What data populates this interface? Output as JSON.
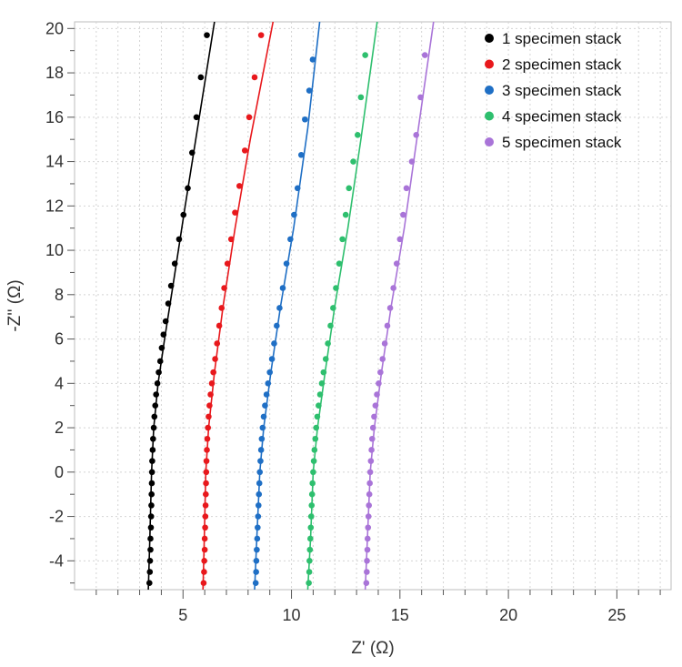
{
  "chart_data": {
    "type": "scatter",
    "title": "",
    "xlabel": "Z' (Ω)",
    "ylabel": "-Z'' (Ω)",
    "xlim": [
      0,
      27.5
    ],
    "ylim": [
      -5.3,
      20.3
    ],
    "x_ticks": [
      5,
      10,
      15,
      20,
      25
    ],
    "y_ticks": [
      -4,
      -2,
      0,
      2,
      4,
      6,
      8,
      10,
      12,
      14,
      16,
      18,
      20
    ],
    "grid": true,
    "legend_position": "top-right",
    "series": [
      {
        "name": "1 specimen stack",
        "color": "#000000",
        "points": [
          [
            3.45,
            -5.0
          ],
          [
            3.47,
            -4.5
          ],
          [
            3.48,
            -4.0
          ],
          [
            3.5,
            -3.5
          ],
          [
            3.5,
            -3.0
          ],
          [
            3.52,
            -2.5
          ],
          [
            3.53,
            -2.0
          ],
          [
            3.54,
            -1.5
          ],
          [
            3.55,
            -1.0
          ],
          [
            3.56,
            -0.5
          ],
          [
            3.57,
            0.0
          ],
          [
            3.58,
            0.5
          ],
          [
            3.6,
            1.0
          ],
          [
            3.62,
            1.5
          ],
          [
            3.65,
            2.0
          ],
          [
            3.68,
            2.5
          ],
          [
            3.72,
            3.0
          ],
          [
            3.76,
            3.5
          ],
          [
            3.82,
            4.0
          ],
          [
            3.88,
            4.5
          ],
          [
            3.95,
            5.0
          ],
          [
            4.02,
            5.6
          ],
          [
            4.1,
            6.2
          ],
          [
            4.2,
            6.8
          ],
          [
            4.32,
            7.6
          ],
          [
            4.45,
            8.4
          ],
          [
            4.62,
            9.4
          ],
          [
            4.82,
            10.5
          ],
          [
            5.02,
            11.6
          ],
          [
            5.22,
            12.8
          ],
          [
            5.42,
            14.4
          ],
          [
            5.62,
            16.0
          ],
          [
            5.82,
            17.8
          ],
          [
            6.1,
            19.7
          ]
        ],
        "fit": [
          [
            3.4,
            -5.3
          ],
          [
            3.47,
            -3.0
          ],
          [
            3.55,
            0.0
          ],
          [
            3.65,
            2.0
          ],
          [
            3.85,
            4.0
          ],
          [
            4.15,
            6.0
          ],
          [
            4.55,
            8.5
          ],
          [
            5.1,
            12.0
          ],
          [
            5.75,
            16.0
          ],
          [
            6.45,
            20.3
          ]
        ]
      },
      {
        "name": "2 specimen stack",
        "color": "#e8181c",
        "points": [
          [
            5.95,
            -5.0
          ],
          [
            5.97,
            -4.5
          ],
          [
            5.98,
            -4.0
          ],
          [
            6.0,
            -3.5
          ],
          [
            6.0,
            -3.0
          ],
          [
            6.02,
            -2.5
          ],
          [
            6.03,
            -2.0
          ],
          [
            6.04,
            -1.5
          ],
          [
            6.05,
            -1.0
          ],
          [
            6.06,
            -0.5
          ],
          [
            6.07,
            0.0
          ],
          [
            6.08,
            0.5
          ],
          [
            6.1,
            1.0
          ],
          [
            6.12,
            1.5
          ],
          [
            6.15,
            2.0
          ],
          [
            6.18,
            2.5
          ],
          [
            6.22,
            3.0
          ],
          [
            6.27,
            3.5
          ],
          [
            6.33,
            4.0
          ],
          [
            6.4,
            4.5
          ],
          [
            6.48,
            5.1
          ],
          [
            6.57,
            5.8
          ],
          [
            6.67,
            6.6
          ],
          [
            6.78,
            7.4
          ],
          [
            6.9,
            8.3
          ],
          [
            7.05,
            9.4
          ],
          [
            7.22,
            10.5
          ],
          [
            7.4,
            11.7
          ],
          [
            7.6,
            12.9
          ],
          [
            7.85,
            14.5
          ],
          [
            8.05,
            16.0
          ],
          [
            8.3,
            17.8
          ],
          [
            8.6,
            19.7
          ]
        ],
        "fit": [
          [
            5.92,
            -5.3
          ],
          [
            5.98,
            -3.0
          ],
          [
            6.05,
            0.0
          ],
          [
            6.18,
            2.0
          ],
          [
            6.45,
            4.5
          ],
          [
            6.85,
            7.5
          ],
          [
            7.4,
            11.0
          ],
          [
            8.1,
            15.0
          ],
          [
            9.15,
            20.3
          ]
        ]
      },
      {
        "name": "3 specimen stack",
        "color": "#1f6fc5",
        "points": [
          [
            8.35,
            -5.0
          ],
          [
            8.37,
            -4.5
          ],
          [
            8.38,
            -4.0
          ],
          [
            8.4,
            -3.5
          ],
          [
            8.42,
            -3.0
          ],
          [
            8.44,
            -2.5
          ],
          [
            8.46,
            -2.0
          ],
          [
            8.48,
            -1.5
          ],
          [
            8.5,
            -1.0
          ],
          [
            8.52,
            -0.5
          ],
          [
            8.54,
            0.0
          ],
          [
            8.57,
            0.5
          ],
          [
            8.6,
            1.0
          ],
          [
            8.63,
            1.5
          ],
          [
            8.67,
            2.0
          ],
          [
            8.72,
            2.5
          ],
          [
            8.78,
            3.0
          ],
          [
            8.85,
            3.5
          ],
          [
            8.92,
            4.0
          ],
          [
            9.0,
            4.5
          ],
          [
            9.1,
            5.1
          ],
          [
            9.2,
            5.8
          ],
          [
            9.32,
            6.6
          ],
          [
            9.45,
            7.4
          ],
          [
            9.6,
            8.3
          ],
          [
            9.77,
            9.4
          ],
          [
            9.95,
            10.5
          ],
          [
            10.12,
            11.6
          ],
          [
            10.28,
            12.8
          ],
          [
            10.45,
            14.3
          ],
          [
            10.62,
            15.9
          ],
          [
            10.82,
            17.2
          ],
          [
            10.98,
            18.6
          ]
        ],
        "fit": [
          [
            8.3,
            -5.3
          ],
          [
            8.4,
            -3.0
          ],
          [
            8.54,
            0.0
          ],
          [
            8.72,
            2.0
          ],
          [
            9.05,
            4.5
          ],
          [
            9.5,
            7.5
          ],
          [
            10.1,
            11.0
          ],
          [
            10.75,
            15.5
          ],
          [
            11.3,
            20.3
          ]
        ]
      },
      {
        "name": "4 specimen stack",
        "color": "#2ebf6e",
        "points": [
          [
            10.8,
            -5.0
          ],
          [
            10.82,
            -4.5
          ],
          [
            10.83,
            -4.0
          ],
          [
            10.85,
            -3.5
          ],
          [
            10.87,
            -3.0
          ],
          [
            10.89,
            -2.5
          ],
          [
            10.91,
            -2.0
          ],
          [
            10.93,
            -1.5
          ],
          [
            10.95,
            -1.0
          ],
          [
            10.97,
            -0.5
          ],
          [
            11.0,
            0.0
          ],
          [
            11.03,
            0.5
          ],
          [
            11.06,
            1.0
          ],
          [
            11.1,
            1.5
          ],
          [
            11.14,
            2.0
          ],
          [
            11.19,
            2.5
          ],
          [
            11.25,
            3.0
          ],
          [
            11.32,
            3.5
          ],
          [
            11.4,
            4.0
          ],
          [
            11.48,
            4.5
          ],
          [
            11.58,
            5.1
          ],
          [
            11.68,
            5.8
          ],
          [
            11.8,
            6.6
          ],
          [
            11.92,
            7.4
          ],
          [
            12.05,
            8.3
          ],
          [
            12.2,
            9.4
          ],
          [
            12.35,
            10.5
          ],
          [
            12.5,
            11.6
          ],
          [
            12.65,
            12.8
          ],
          [
            12.85,
            14.0
          ],
          [
            13.05,
            15.2
          ],
          [
            13.2,
            16.9
          ],
          [
            13.4,
            18.8
          ]
        ],
        "fit": [
          [
            10.75,
            -5.3
          ],
          [
            10.88,
            -3.0
          ],
          [
            11.0,
            0.0
          ],
          [
            11.2,
            2.0
          ],
          [
            11.55,
            4.5
          ],
          [
            12.0,
            7.5
          ],
          [
            12.6,
            11.0
          ],
          [
            13.2,
            15.0
          ],
          [
            13.95,
            20.3
          ]
        ]
      },
      {
        "name": "5 specimen stack",
        "color": "#a974d8",
        "points": [
          [
            13.45,
            -5.0
          ],
          [
            13.47,
            -4.5
          ],
          [
            13.48,
            -4.0
          ],
          [
            13.5,
            -3.5
          ],
          [
            13.51,
            -3.0
          ],
          [
            13.53,
            -2.5
          ],
          [
            13.55,
            -2.0
          ],
          [
            13.57,
            -1.5
          ],
          [
            13.59,
            -1.0
          ],
          [
            13.61,
            -0.5
          ],
          [
            13.63,
            0.0
          ],
          [
            13.66,
            0.5
          ],
          [
            13.69,
            1.0
          ],
          [
            13.72,
            1.5
          ],
          [
            13.76,
            2.0
          ],
          [
            13.81,
            2.5
          ],
          [
            13.87,
            3.0
          ],
          [
            13.94,
            3.5
          ],
          [
            14.02,
            4.0
          ],
          [
            14.1,
            4.5
          ],
          [
            14.2,
            5.1
          ],
          [
            14.3,
            5.8
          ],
          [
            14.42,
            6.6
          ],
          [
            14.55,
            7.4
          ],
          [
            14.7,
            8.3
          ],
          [
            14.85,
            9.4
          ],
          [
            15.0,
            10.5
          ],
          [
            15.15,
            11.6
          ],
          [
            15.3,
            12.8
          ],
          [
            15.55,
            14.0
          ],
          [
            15.75,
            15.2
          ],
          [
            15.95,
            16.9
          ],
          [
            16.15,
            18.8
          ]
        ],
        "fit": [
          [
            13.4,
            -5.3
          ],
          [
            13.5,
            -3.0
          ],
          [
            13.63,
            0.0
          ],
          [
            13.82,
            2.0
          ],
          [
            14.15,
            4.5
          ],
          [
            14.6,
            7.5
          ],
          [
            15.2,
            11.0
          ],
          [
            15.85,
            15.5
          ],
          [
            16.55,
            20.3
          ]
        ]
      }
    ]
  }
}
